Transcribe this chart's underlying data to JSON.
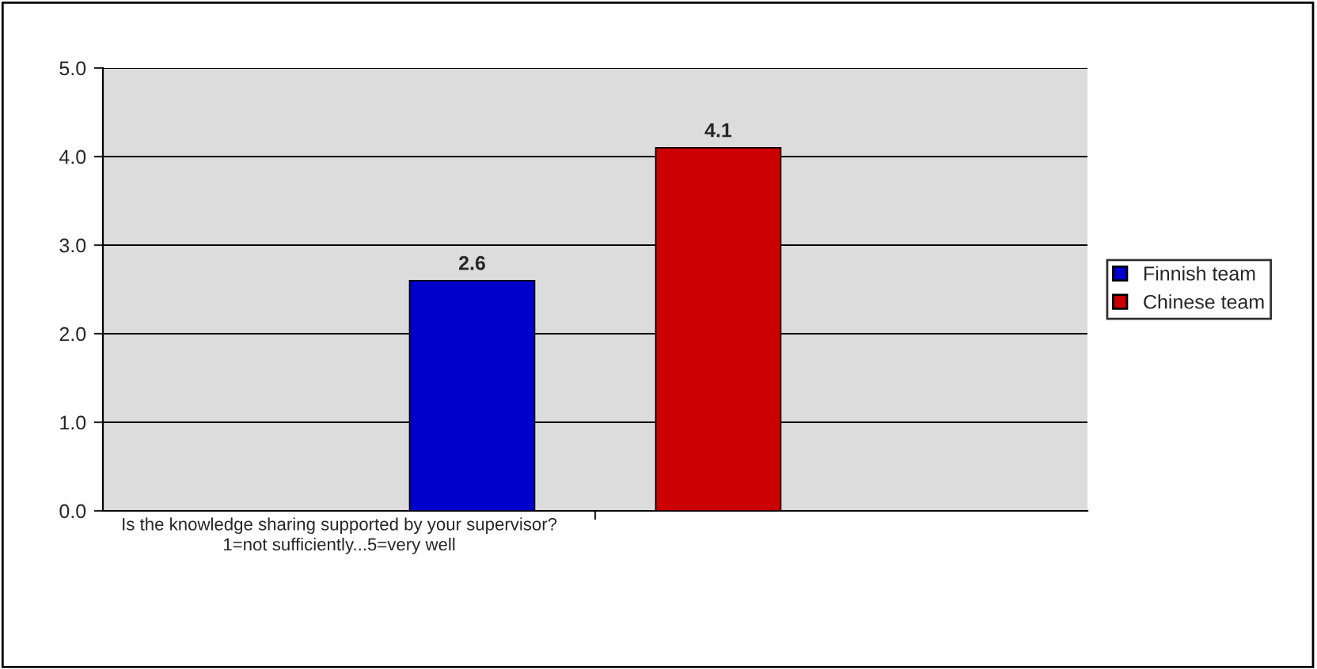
{
  "chart_data": {
    "type": "bar",
    "categories": [
      null
    ],
    "xlabel": "Is the knowledge sharing supported by your supervisor?\n1=not sufficiently...5=very well",
    "series": [
      {
        "name": "Finnish team",
        "color": "#0000cc",
        "values": [
          2.6
        ]
      },
      {
        "name": "Chinese team",
        "color": "#cc0000",
        "values": [
          4.1
        ]
      }
    ],
    "ylim": [
      0,
      5
    ],
    "yticks": [
      {
        "value": 0,
        "label": "0.0"
      },
      {
        "value": 1,
        "label": "1.0"
      },
      {
        "value": 2,
        "label": "2.0"
      },
      {
        "value": 3,
        "label": "3.0"
      },
      {
        "value": 4,
        "label": "4.0"
      },
      {
        "value": 5,
        "label": "5.0"
      }
    ],
    "grid": "y",
    "legend": "right",
    "data_labels": true
  }
}
